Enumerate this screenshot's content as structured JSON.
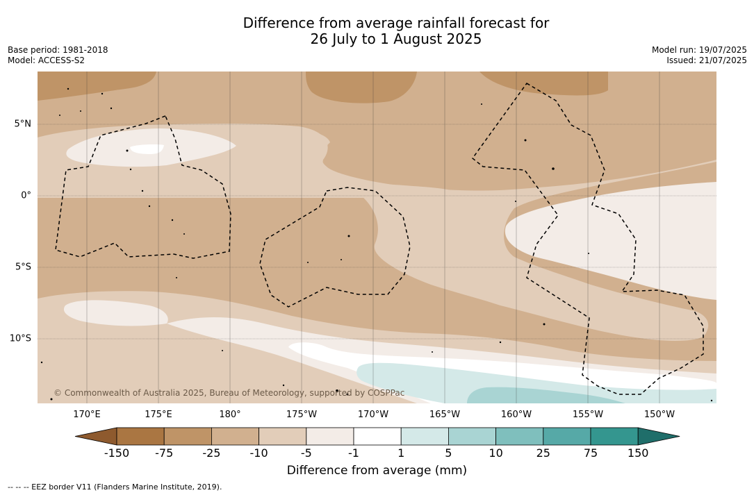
{
  "title_line1": "Difference from average rainfall forecast for",
  "title_line2": "26 July to 1 August 2025",
  "meta_left": {
    "base_period": "Base period: 1981-2018",
    "model": "Model: ACCESS-S2"
  },
  "meta_right": {
    "model_run": "Model run: 19/07/2025",
    "issued": "Issued: 21/07/2025"
  },
  "credit": "© Commonwealth of Australia 2025, Bureau of Meteorology, supported by COSPPac",
  "lon_labels": [
    "170°E",
    "175°E",
    "180°",
    "175°W",
    "170°W",
    "165°W",
    "160°W",
    "155°W",
    "150°W"
  ],
  "lat_labels": [
    "5°N",
    "0°",
    "5°S",
    "10°S"
  ],
  "colorbar": {
    "title": "Difference from average (mm)",
    "ticks": [
      "-150",
      "-75",
      "-25",
      "-10",
      "-5",
      "-1",
      "1",
      "5",
      "10",
      "25",
      "75",
      "150"
    ],
    "colors": [
      "#8e5a2e",
      "#aa7642",
      "#bf9467",
      "#d1b08f",
      "#e2cdb9",
      "#f3ece7",
      "#ffffff",
      "#d4e9e8",
      "#a9d4d3",
      "#7fbfbd",
      "#56a9a7",
      "#34968f",
      "#1f6e6a"
    ]
  },
  "footnote": "--  --  -- EEZ border V11 (Flanders Marine Institute, 2019)."
}
